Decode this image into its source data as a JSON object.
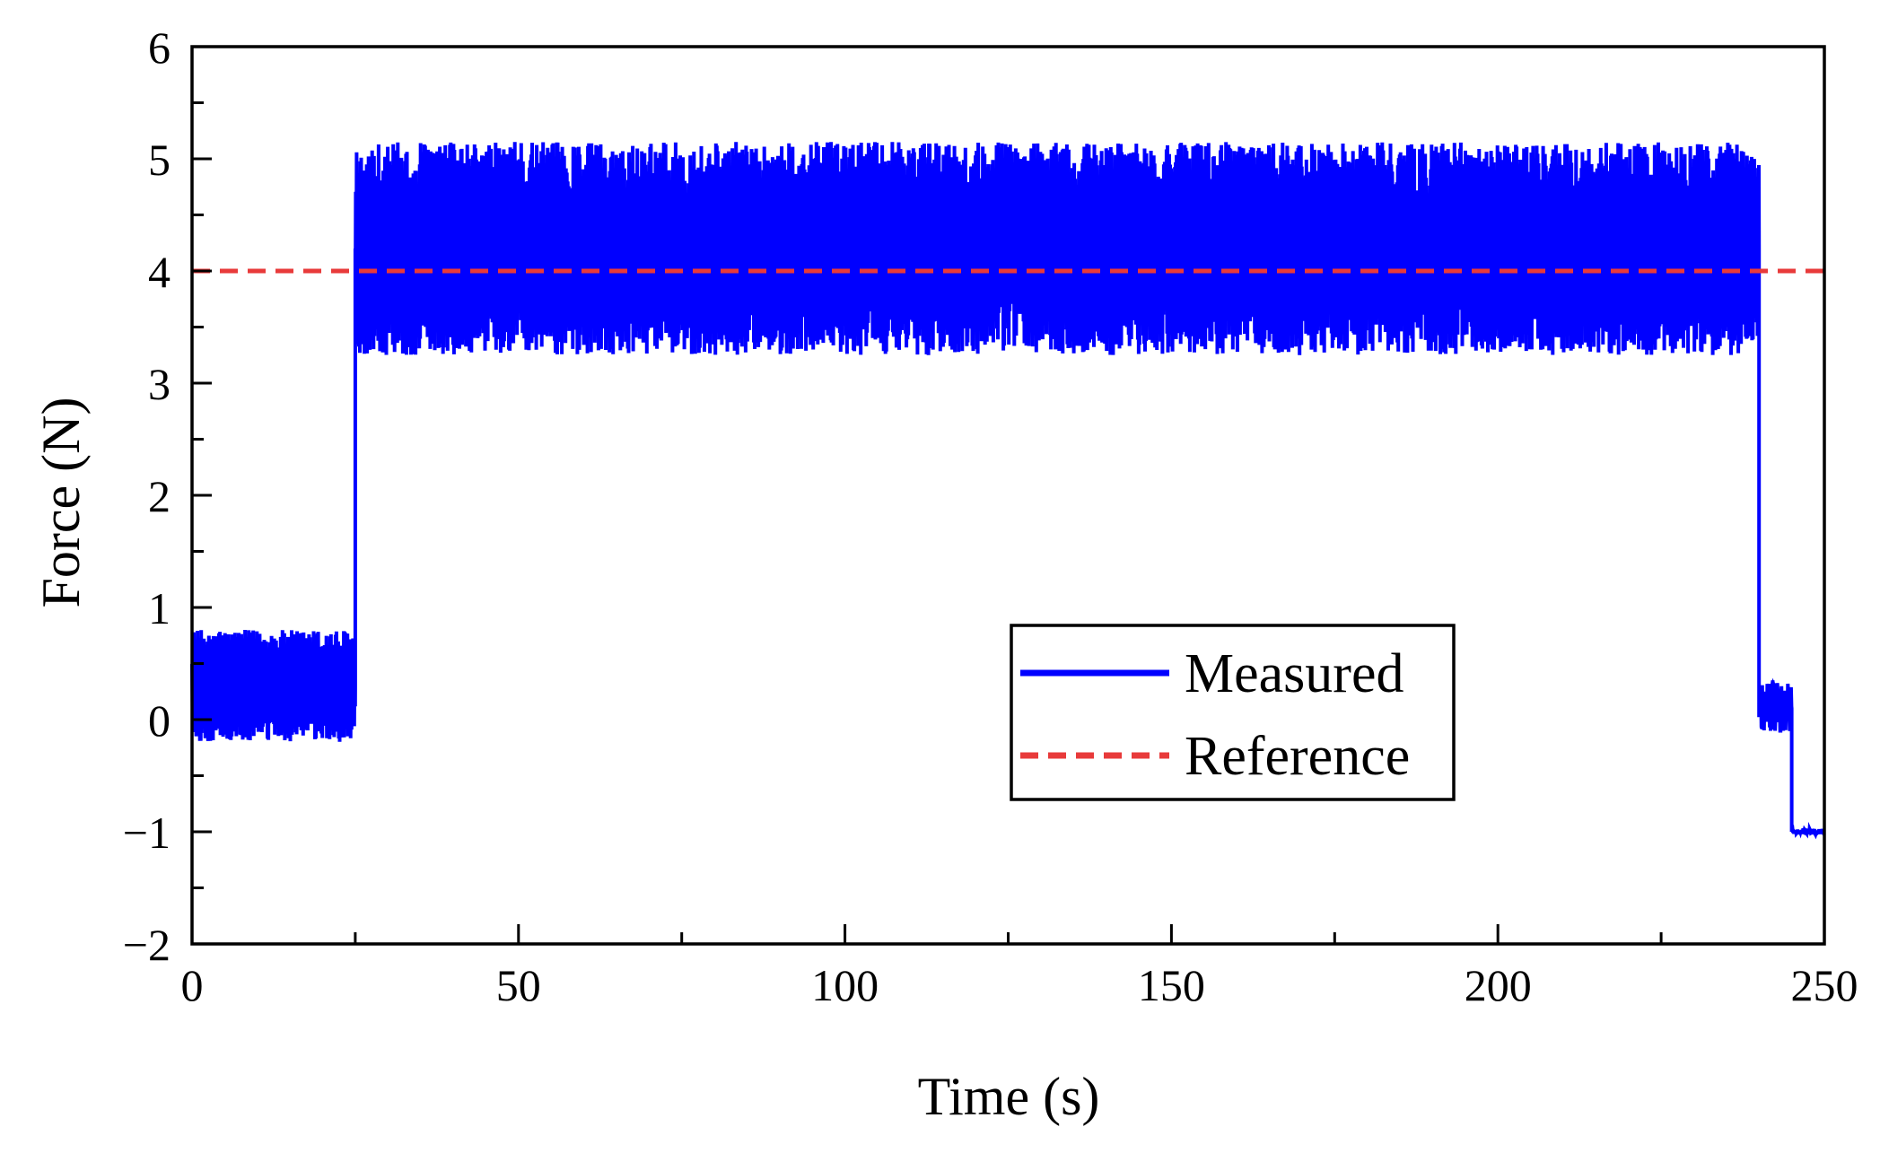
{
  "chart_data": {
    "type": "line",
    "title": "",
    "xlabel": "Time (s)",
    "ylabel": "Force (N)",
    "xlim": [
      0,
      250
    ],
    "ylim": [
      -2,
      6
    ],
    "x_ticks": [
      0,
      50,
      100,
      150,
      200,
      250
    ],
    "x_tick_labels": [
      "0",
      "50",
      "100",
      "150",
      "200",
      "250"
    ],
    "x_minor_ticks": [
      25,
      75,
      125,
      175,
      225
    ],
    "y_ticks": [
      -2,
      -1,
      0,
      1,
      2,
      3,
      4,
      5,
      6
    ],
    "y_tick_labels": [
      "−2",
      "−1",
      "0",
      "1",
      "2",
      "3",
      "4",
      "5",
      "6"
    ],
    "y_minor_ticks": [
      -1.5,
      -0.5,
      0.5,
      1.5,
      2.5,
      3.5,
      4.5,
      5.5
    ],
    "grid": false,
    "legend_position": "center-right",
    "series": [
      {
        "name": "Measured",
        "color": "#0000ff",
        "style": "solid",
        "segments": [
          {
            "x_start": 0,
            "x_end": 25,
            "center": 0.3,
            "low": -0.2,
            "high": 0.8
          },
          {
            "x_start": 25,
            "x_end": 240,
            "center": 4.2,
            "low": 3.25,
            "high": 5.15
          },
          {
            "x_start": 240,
            "x_end": 245,
            "center": 0.1,
            "low": -0.1,
            "high": 0.35
          },
          {
            "x_start": 245,
            "x_end": 250,
            "center": -1.0,
            "low": -1.03,
            "high": -0.97
          }
        ]
      },
      {
        "name": "Reference",
        "color": "#e83a3a",
        "style": "dashed",
        "x": [
          0,
          250
        ],
        "y": [
          4,
          4
        ]
      }
    ]
  }
}
